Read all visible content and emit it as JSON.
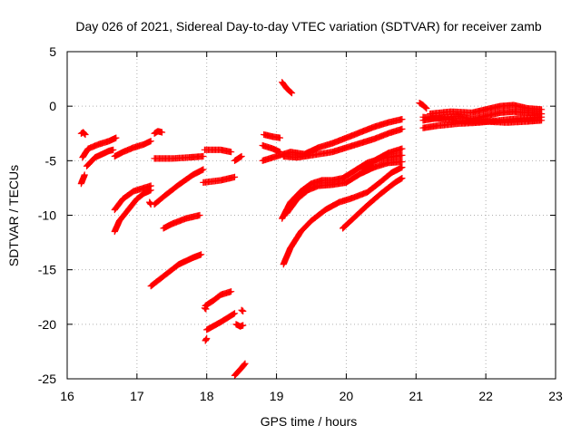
{
  "chart_data": {
    "type": "scatter",
    "title": "Day 026 of 2021, Sidereal Day-to-day VTEC variation (SDTVAR) for receiver zamb",
    "xlabel": "GPS time / hours",
    "ylabel": "SDTVAR / TECUs",
    "xlim": [
      16,
      23
    ],
    "ylim": [
      -25,
      5
    ],
    "xticks": [
      "16",
      "17",
      "18",
      "19",
      "20",
      "21",
      "22",
      "23"
    ],
    "yticks": [
      "5",
      "0",
      "-5",
      "-10",
      "-15",
      "-20",
      "-25"
    ],
    "grid": true,
    "marker": "plus",
    "color": "#ff0000",
    "series": [
      {
        "name": "s01",
        "points": [
          [
            16.2,
            -2.5
          ],
          [
            16.23,
            -2.4
          ],
          [
            16.26,
            -2.6
          ]
        ]
      },
      {
        "name": "s02",
        "points": [
          [
            16.22,
            -4.7
          ],
          [
            16.3,
            -3.9
          ],
          [
            16.45,
            -3.5
          ],
          [
            16.6,
            -3.2
          ],
          [
            16.7,
            -2.9
          ]
        ]
      },
      {
        "name": "s03",
        "points": [
          [
            16.28,
            -5.5
          ],
          [
            16.4,
            -4.7
          ],
          [
            16.5,
            -4.4
          ],
          [
            16.6,
            -4.1
          ],
          [
            16.66,
            -4.0
          ]
        ]
      },
      {
        "name": "s04",
        "points": [
          [
            16.2,
            -7.1
          ],
          [
            16.25,
            -6.3
          ]
        ]
      },
      {
        "name": "s05",
        "points": [
          [
            16.68,
            -4.6
          ],
          [
            16.8,
            -4.2
          ],
          [
            16.95,
            -3.8
          ],
          [
            17.1,
            -3.5
          ],
          [
            17.2,
            -3.2
          ]
        ]
      },
      {
        "name": "s06",
        "points": [
          [
            17.25,
            -2.5
          ],
          [
            17.3,
            -2.3
          ],
          [
            17.36,
            -2.4
          ]
        ]
      },
      {
        "name": "s07",
        "points": [
          [
            17.25,
            -4.8
          ],
          [
            17.5,
            -4.8
          ],
          [
            17.75,
            -4.7
          ],
          [
            17.95,
            -4.6
          ]
        ]
      },
      {
        "name": "s08",
        "points": [
          [
            16.68,
            -9.5
          ],
          [
            16.8,
            -8.5
          ],
          [
            16.95,
            -7.8
          ],
          [
            17.1,
            -7.5
          ],
          [
            17.2,
            -7.3
          ]
        ]
      },
      {
        "name": "s09",
        "points": [
          [
            16.68,
            -11.5
          ],
          [
            16.75,
            -10.5
          ],
          [
            16.9,
            -9.3
          ],
          [
            17.0,
            -8.5
          ],
          [
            17.1,
            -8.0
          ],
          [
            17.2,
            -7.7
          ]
        ]
      },
      {
        "name": "s10",
        "points": [
          [
            17.18,
            -8.8
          ],
          [
            17.2,
            -9.0
          ]
        ]
      },
      {
        "name": "s11",
        "points": [
          [
            17.25,
            -9.0
          ],
          [
            17.4,
            -8.2
          ],
          [
            17.6,
            -7.2
          ],
          [
            17.8,
            -6.3
          ],
          [
            17.95,
            -5.8
          ]
        ]
      },
      {
        "name": "s12",
        "points": [
          [
            17.38,
            -11.2
          ],
          [
            17.5,
            -10.8
          ],
          [
            17.7,
            -10.3
          ],
          [
            17.9,
            -10.0
          ]
        ]
      },
      {
        "name": "s13",
        "points": [
          [
            17.2,
            -16.5
          ],
          [
            17.4,
            -15.5
          ],
          [
            17.6,
            -14.5
          ],
          [
            17.8,
            -13.9
          ],
          [
            17.92,
            -13.6
          ]
        ]
      },
      {
        "name": "s14",
        "points": [
          [
            17.98,
            -18.3
          ],
          [
            18.1,
            -17.8
          ],
          [
            18.2,
            -17.3
          ],
          [
            18.35,
            -17.0
          ]
        ]
      },
      {
        "name": "s15",
        "points": [
          [
            17.97,
            -18.5
          ],
          [
            17.99,
            -18.6
          ]
        ]
      },
      {
        "name": "s16",
        "points": [
          [
            18.0,
            -20.5
          ],
          [
            18.2,
            -19.8
          ],
          [
            18.4,
            -19.0
          ]
        ]
      },
      {
        "name": "s17",
        "points": [
          [
            17.98,
            -21.5
          ],
          [
            18.0,
            -21.3
          ]
        ]
      },
      {
        "name": "s18",
        "points": [
          [
            18.42,
            -20.0
          ],
          [
            18.48,
            -20.2
          ],
          [
            18.52,
            -20.1
          ]
        ]
      },
      {
        "name": "s19",
        "points": [
          [
            18.5,
            -18.7
          ],
          [
            18.52,
            -18.8
          ]
        ]
      },
      {
        "name": "s20",
        "points": [
          [
            18.4,
            -24.7
          ],
          [
            18.5,
            -24.0
          ],
          [
            18.55,
            -23.6
          ]
        ]
      },
      {
        "name": "s21",
        "points": [
          [
            17.97,
            -4.0
          ],
          [
            18.2,
            -4.0
          ],
          [
            18.35,
            -4.2
          ]
        ]
      },
      {
        "name": "s22",
        "points": [
          [
            17.95,
            -7.0
          ],
          [
            18.2,
            -6.8
          ],
          [
            18.4,
            -6.5
          ]
        ]
      },
      {
        "name": "s23",
        "points": [
          [
            18.4,
            -5.0
          ],
          [
            18.5,
            -4.6
          ]
        ]
      },
      {
        "name": "s24",
        "points": [
          [
            18.8,
            -3.6
          ],
          [
            18.95,
            -3.9
          ],
          [
            19.05,
            -4.2
          ]
        ]
      },
      {
        "name": "s25",
        "points": [
          [
            18.82,
            -2.6
          ],
          [
            18.95,
            -2.8
          ],
          [
            19.05,
            -2.9
          ]
        ]
      },
      {
        "name": "s26",
        "points": [
          [
            18.8,
            -5.0
          ],
          [
            19.0,
            -4.6
          ],
          [
            19.2,
            -4.2
          ],
          [
            19.4,
            -4.4
          ],
          [
            19.6,
            -3.8
          ],
          [
            19.8,
            -3.4
          ],
          [
            20.0,
            -2.9
          ],
          [
            20.2,
            -2.4
          ],
          [
            20.4,
            -1.9
          ],
          [
            20.6,
            -1.5
          ],
          [
            20.8,
            -1.2
          ]
        ]
      },
      {
        "name": "s27",
        "points": [
          [
            19.1,
            -4.6
          ],
          [
            19.3,
            -4.7
          ],
          [
            19.5,
            -4.5
          ],
          [
            19.8,
            -4.2
          ],
          [
            20.1,
            -3.6
          ],
          [
            20.4,
            -3.0
          ],
          [
            20.6,
            -2.5
          ],
          [
            20.8,
            -2.1
          ]
        ]
      },
      {
        "name": "s28",
        "points": [
          [
            19.08,
            2.2
          ],
          [
            19.15,
            1.6
          ],
          [
            19.22,
            1.2
          ]
        ]
      },
      {
        "name": "s29",
        "points": [
          [
            19.08,
            -10.3
          ],
          [
            19.2,
            -8.8
          ],
          [
            19.35,
            -7.8
          ],
          [
            19.5,
            -7.1
          ],
          [
            19.65,
            -6.8
          ],
          [
            19.8,
            -6.8
          ],
          [
            19.95,
            -6.6
          ],
          [
            20.1,
            -6.0
          ],
          [
            20.3,
            -5.2
          ],
          [
            20.5,
            -4.8
          ],
          [
            20.7,
            -4.6
          ],
          [
            20.8,
            -4.5
          ]
        ]
      },
      {
        "name": "s30",
        "points": [
          [
            19.15,
            -9.8
          ],
          [
            19.3,
            -8.5
          ],
          [
            19.45,
            -7.7
          ],
          [
            19.6,
            -7.3
          ],
          [
            19.8,
            -7.2
          ],
          [
            20.0,
            -7.0
          ],
          [
            20.2,
            -6.2
          ],
          [
            20.4,
            -5.6
          ],
          [
            20.6,
            -5.2
          ],
          [
            20.8,
            -5.1
          ]
        ]
      },
      {
        "name": "s31",
        "points": [
          [
            19.1,
            -14.5
          ],
          [
            19.2,
            -13.0
          ],
          [
            19.35,
            -11.5
          ],
          [
            19.5,
            -10.5
          ],
          [
            19.7,
            -9.5
          ],
          [
            19.9,
            -8.8
          ],
          [
            20.1,
            -8.4
          ],
          [
            20.3,
            -7.9
          ],
          [
            20.5,
            -6.9
          ],
          [
            20.65,
            -6.1
          ],
          [
            20.8,
            -5.6
          ]
        ]
      },
      {
        "name": "s32",
        "points": [
          [
            20.25,
            -5.8
          ],
          [
            20.4,
            -5.0
          ],
          [
            20.6,
            -4.3
          ],
          [
            20.8,
            -3.9
          ]
        ]
      },
      {
        "name": "s33",
        "points": [
          [
            19.95,
            -11.2
          ],
          [
            20.1,
            -10.3
          ],
          [
            20.3,
            -9.1
          ],
          [
            20.5,
            -8.0
          ],
          [
            20.7,
            -7.0
          ],
          [
            20.8,
            -6.6
          ]
        ]
      },
      {
        "name": "s34",
        "points": [
          [
            21.05,
            0.3
          ],
          [
            21.1,
            0.1
          ],
          [
            21.15,
            -0.2
          ]
        ]
      },
      {
        "name": "s35",
        "points": [
          [
            21.1,
            -2.0
          ],
          [
            21.3,
            -1.8
          ],
          [
            21.6,
            -1.6
          ],
          [
            21.9,
            -1.5
          ],
          [
            22.2,
            -1.3
          ],
          [
            22.5,
            -1.1
          ],
          [
            22.8,
            -1.0
          ]
        ]
      },
      {
        "name": "s36",
        "points": [
          [
            21.1,
            -1.3
          ],
          [
            21.3,
            -1.1
          ],
          [
            21.6,
            -0.9
          ],
          [
            21.8,
            -1.2
          ],
          [
            22.0,
            -0.9
          ],
          [
            22.2,
            -0.6
          ],
          [
            22.4,
            -0.5
          ],
          [
            22.6,
            -0.6
          ],
          [
            22.8,
            -0.7
          ]
        ]
      },
      {
        "name": "s37",
        "points": [
          [
            21.2,
            -0.7
          ],
          [
            21.5,
            -0.5
          ],
          [
            21.8,
            -0.6
          ],
          [
            22.0,
            -0.3
          ],
          [
            22.2,
            0.0
          ],
          [
            22.4,
            0.1
          ],
          [
            22.6,
            -0.2
          ],
          [
            22.8,
            -0.3
          ]
        ]
      },
      {
        "name": "s38",
        "points": [
          [
            21.1,
            -1.0
          ],
          [
            21.4,
            -1.2
          ],
          [
            21.7,
            -1.4
          ],
          [
            22.0,
            -1.4
          ],
          [
            22.3,
            -1.5
          ],
          [
            22.6,
            -1.4
          ],
          [
            22.8,
            -1.3
          ]
        ]
      }
    ]
  }
}
